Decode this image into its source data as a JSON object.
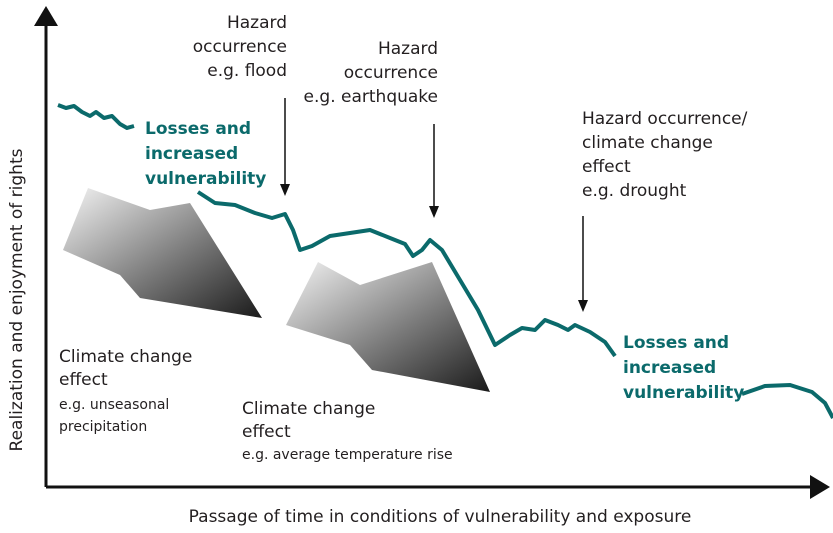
{
  "y_axis_label": "Realization and enjoyment of rights",
  "x_axis_label": "Passage of time in conditions of vulnerability and exposure",
  "hazard_flood": [
    "Hazard",
    "occurrence",
    "e.g. flood"
  ],
  "hazard_earthquake": [
    "Hazard",
    "occurrence",
    "e.g. earthquake"
  ],
  "hazard_drought": [
    "Hazard occurrence/",
    "climate change",
    "effect",
    "e.g. drought"
  ],
  "losses_1": [
    "Losses and",
    "increased",
    "vulnerability"
  ],
  "losses_2": [
    "Losses and",
    "increased",
    "vulnerability"
  ],
  "climate_1": {
    "heading": [
      "Climate change",
      "effect"
    ],
    "example": [
      "e.g. unseasonal",
      "precipitation"
    ]
  },
  "climate_2": {
    "heading": [
      "Climate change",
      "effect"
    ],
    "example": [
      "e.g. average temperature rise"
    ]
  }
}
